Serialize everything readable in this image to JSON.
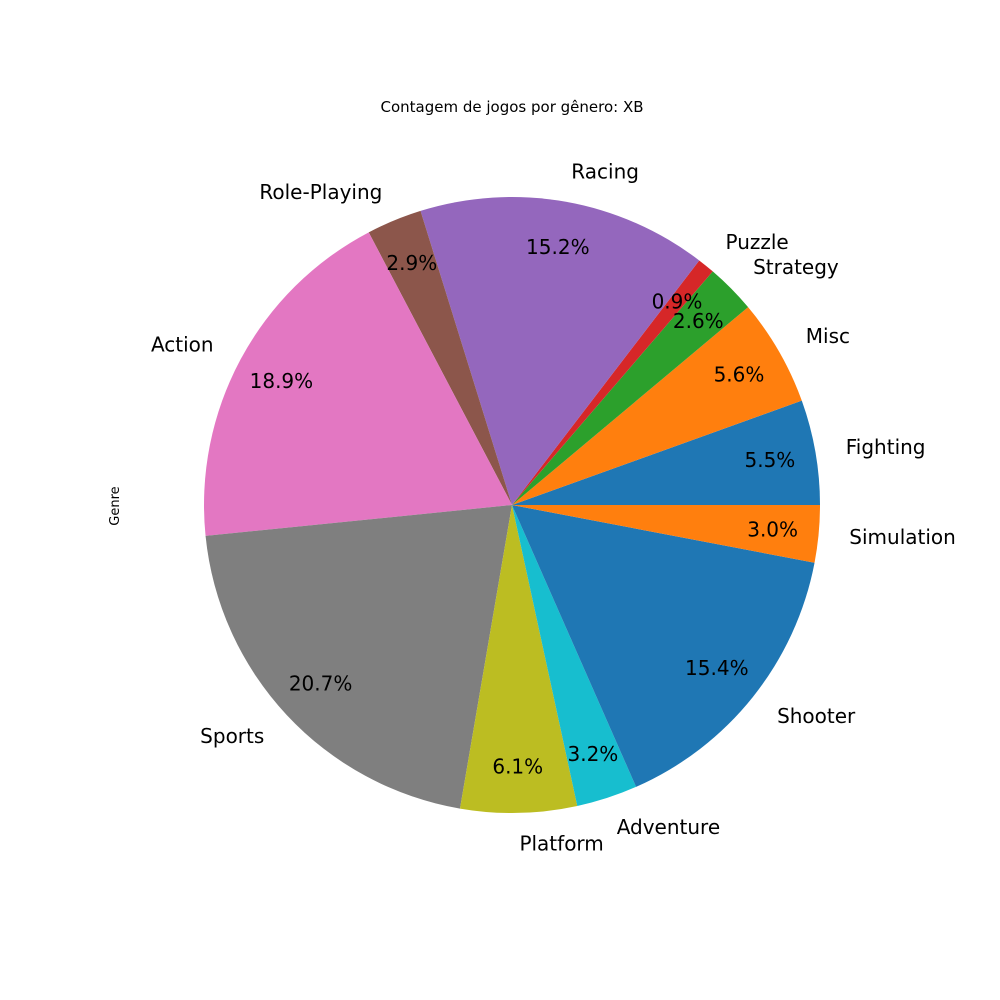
{
  "chart_data": {
    "type": "pie",
    "title": "Contagem de jogos por gênero: XB",
    "ylabel": "Genre",
    "start_angle_deg": 0,
    "direction": "counterclockwise",
    "slices": [
      {
        "label": "Fighting",
        "value": 5.5,
        "pct_label": "5.5%",
        "color": "#1f77b4"
      },
      {
        "label": "Misc",
        "value": 5.6,
        "pct_label": "5.6%",
        "color": "#ff7f0e"
      },
      {
        "label": "Strategy",
        "value": 2.6,
        "pct_label": "2.6%",
        "color": "#2ca02c"
      },
      {
        "label": "Puzzle",
        "value": 0.9,
        "pct_label": "0.9%",
        "color": "#d62728"
      },
      {
        "label": "Racing",
        "value": 15.2,
        "pct_label": "15.2%",
        "color": "#9467bd"
      },
      {
        "label": "Role-Playing",
        "value": 2.9,
        "pct_label": "2.9%",
        "color": "#8c564b"
      },
      {
        "label": "Action",
        "value": 18.9,
        "pct_label": "18.9%",
        "color": "#e377c2"
      },
      {
        "label": "Sports",
        "value": 20.7,
        "pct_label": "20.7%",
        "color": "#7f7f7f"
      },
      {
        "label": "Platform",
        "value": 6.1,
        "pct_label": "6.1%",
        "color": "#bcbd22"
      },
      {
        "label": "Adventure",
        "value": 3.2,
        "pct_label": "3.2%",
        "color": "#17becf"
      },
      {
        "label": "Shooter",
        "value": 15.4,
        "pct_label": "15.4%",
        "color": "#1f77b4"
      },
      {
        "label": "Simulation",
        "value": 3.0,
        "pct_label": "3.0%",
        "color": "#ff7f0e"
      }
    ]
  }
}
